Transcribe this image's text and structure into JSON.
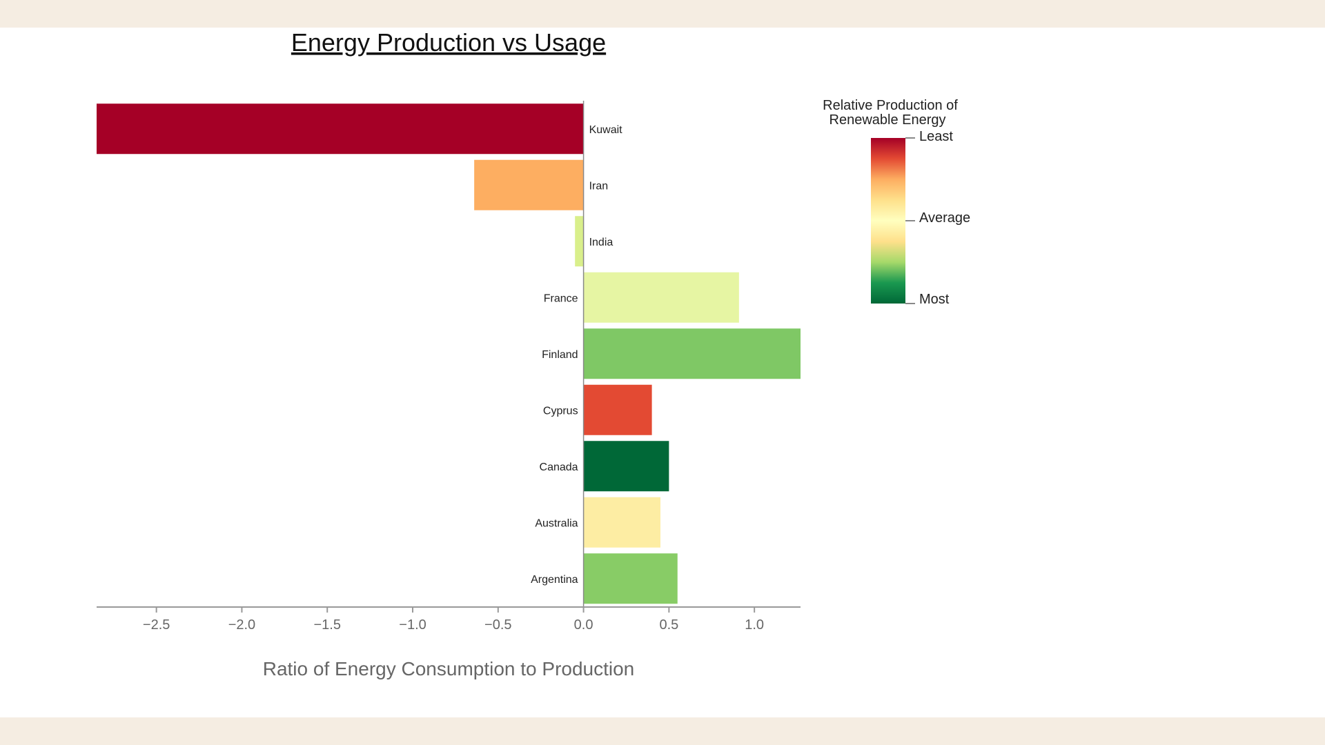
{
  "chart_data": {
    "type": "bar",
    "orientation": "horizontal",
    "title": "Energy Production vs Usage",
    "xlabel": "Ratio of Energy Consumption to Production",
    "ylabel": "",
    "xlim": [
      -2.85,
      1.27
    ],
    "xticks": [
      {
        "value": -2.5,
        "label": "−2.5"
      },
      {
        "value": -2.0,
        "label": "−2.0"
      },
      {
        "value": -1.5,
        "label": "−1.5"
      },
      {
        "value": -1.0,
        "label": "−1.0"
      },
      {
        "value": -0.5,
        "label": "−0.5"
      },
      {
        "value": 0.0,
        "label": "0.0"
      },
      {
        "value": 0.5,
        "label": "0.5"
      },
      {
        "value": 1.0,
        "label": "1.0"
      }
    ],
    "grid": false,
    "categories": [
      "Kuwait",
      "Iran",
      "India",
      "France",
      "Finland",
      "Cyprus",
      "Canada",
      "Australia",
      "Argentina"
    ],
    "values": [
      -2.85,
      -0.64,
      -0.05,
      0.91,
      1.27,
      0.4,
      0.5,
      0.45,
      0.55
    ],
    "colors": [
      "#a50026",
      "#fdae61",
      "#d9ef8b",
      "#e6f5a3",
      "#7fc865",
      "#e34a33",
      "#006837",
      "#fdeda3",
      "#88cc66"
    ],
    "legend": {
      "title_lines": [
        "Relative Production of",
        "Renewable Energy"
      ],
      "labels": [
        "Least",
        "Average",
        "Most"
      ],
      "placement": "right",
      "gradient": [
        "#a50026",
        "#e34a33",
        "#fdae61",
        "#fee08b",
        "#ffffbf",
        "#fee08b",
        "#a6d96a",
        "#1a9850",
        "#006837"
      ]
    }
  }
}
